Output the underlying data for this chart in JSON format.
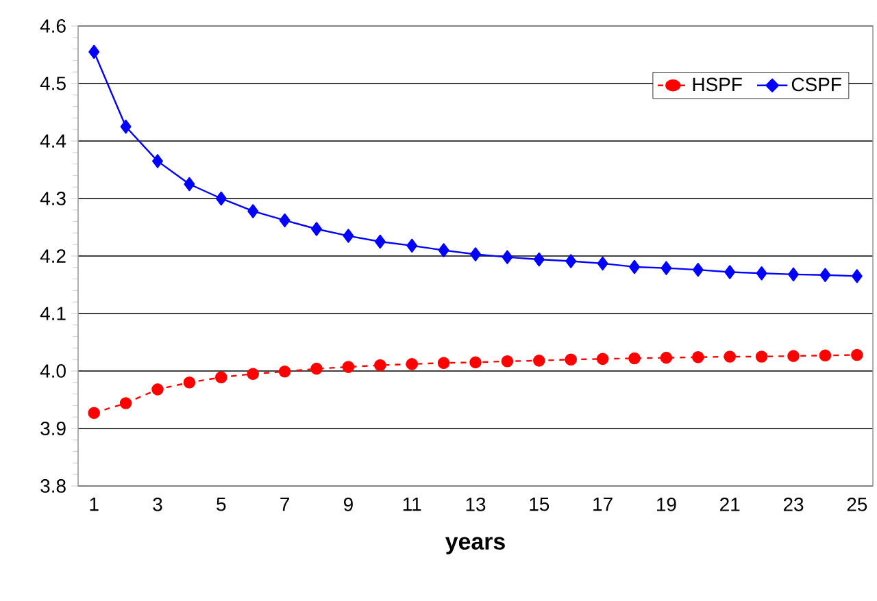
{
  "chart_data": {
    "type": "line",
    "xlabel": "years",
    "categories": [
      "1",
      null,
      "3",
      null,
      "5",
      null,
      "7",
      null,
      "9",
      null,
      "11",
      null,
      "13",
      null,
      "15",
      null,
      "17",
      null,
      "19",
      null,
      "21",
      null,
      "23",
      null,
      "25"
    ],
    "series": [
      {
        "name": "HSPF",
        "color": "#ff0000",
        "marker": "circle",
        "line_style": "dashed",
        "values": [
          3.927,
          3.944,
          3.968,
          3.98,
          3.989,
          3.995,
          3.999,
          4.004,
          4.007,
          4.01,
          4.012,
          4.014,
          4.015,
          4.017,
          4.018,
          4.02,
          4.021,
          4.022,
          4.023,
          4.024,
          4.025,
          4.025,
          4.026,
          4.027,
          4.028
        ]
      },
      {
        "name": "CSPF",
        "color": "#0000ff",
        "marker": "diamond",
        "line_style": "solid",
        "values": [
          4.555,
          4.425,
          4.365,
          4.325,
          4.3,
          4.278,
          4.262,
          4.247,
          4.235,
          4.225,
          4.218,
          4.21,
          4.203,
          4.198,
          4.194,
          4.191,
          4.187,
          4.181,
          4.179,
          4.176,
          4.172,
          4.17,
          4.168,
          4.167,
          4.165
        ]
      }
    ],
    "ylim": [
      3.8,
      4.6
    ],
    "yticks": [
      {
        "value": 3.8,
        "label": "3.8"
      },
      {
        "value": 3.9,
        "label": "3.9"
      },
      {
        "value": 4.0,
        "label": "4.0"
      },
      {
        "value": 4.1,
        "label": "4.1"
      },
      {
        "value": 4.2,
        "label": "4.2"
      },
      {
        "value": 4.3,
        "label": "4.3"
      },
      {
        "value": 4.4,
        "label": "4.4"
      },
      {
        "value": 4.5,
        "label": "4.5"
      },
      {
        "value": 4.6,
        "label": "4.6"
      }
    ],
    "grid": "y",
    "legend": "top right"
  }
}
